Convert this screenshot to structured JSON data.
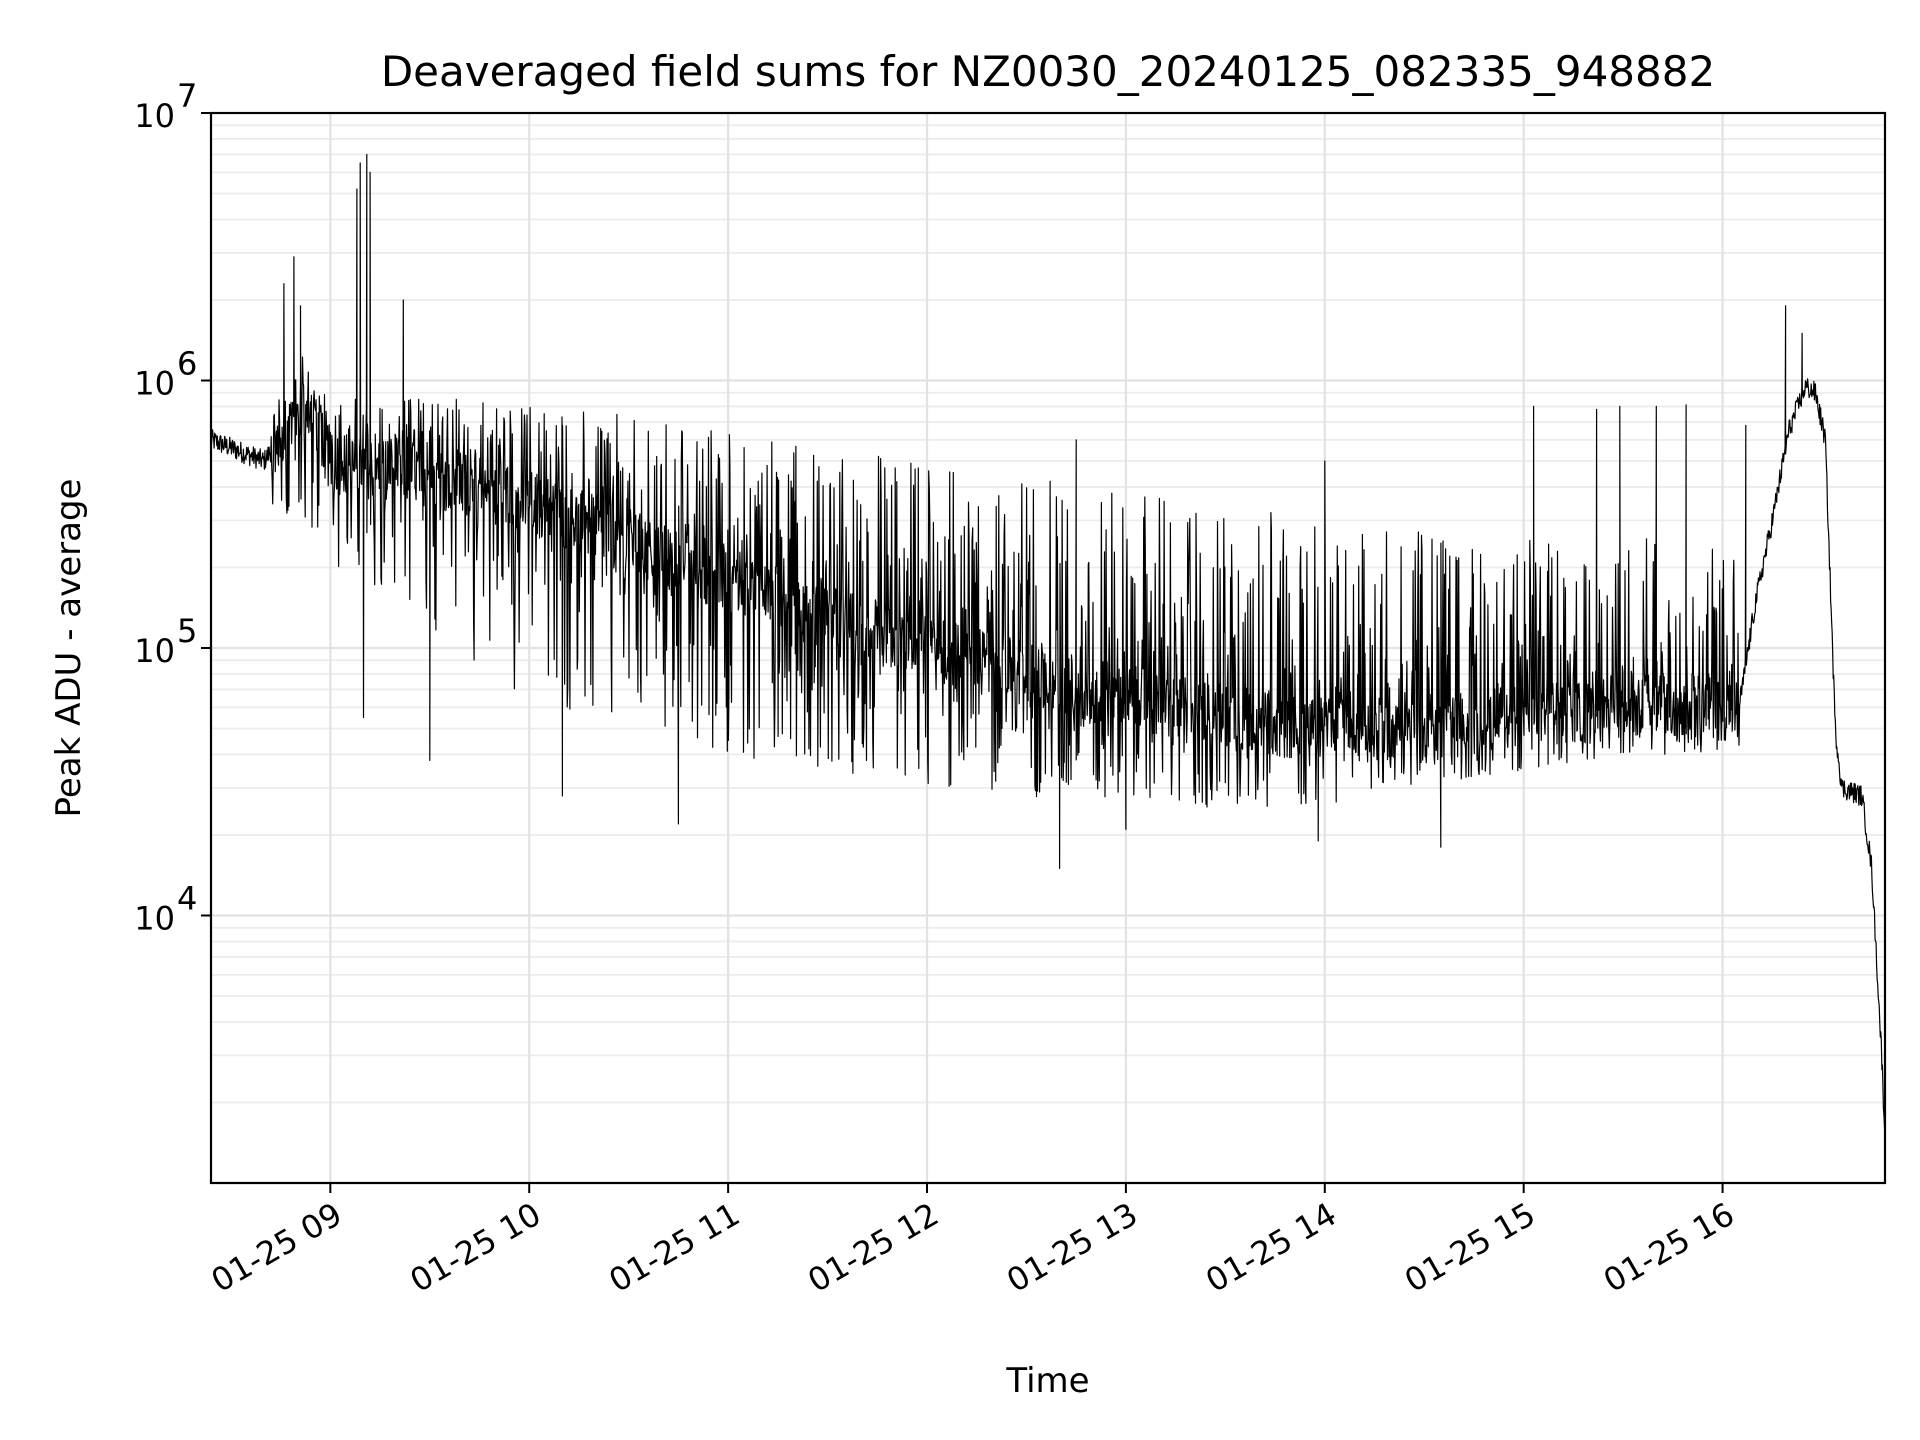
{
  "colors": {
    "line": "#000000",
    "grid": "#e2e2e2",
    "background": "#ffffff"
  },
  "chart_data": {
    "type": "line",
    "title": "Deaveraged field sums for NZ0030_20240125_082335_948882",
    "xlabel": "Time",
    "ylabel": "Peak ADU - average",
    "yscale": "log",
    "grid": true,
    "xlim": [
      "2024-01-25 08:24",
      "2024-01-25 16:49"
    ],
    "ylim": [
      1000,
      10000000
    ],
    "x_ticks": [
      "01-25 09",
      "01-25 10",
      "01-25 11",
      "01-25 12",
      "01-25 13",
      "01-25 14",
      "01-25 15",
      "01-25 16"
    ],
    "y_ticks": [
      {
        "base": "10",
        "exp": "4",
        "value": 10000
      },
      {
        "base": "10",
        "exp": "5",
        "value": 100000
      },
      {
        "base": "10",
        "exp": "6",
        "value": 1000000
      },
      {
        "base": "10",
        "exp": "7",
        "value": 10000000
      }
    ],
    "series": [
      {
        "color": "#000000",
        "typical_points": [
          [
            "08:24",
            600000
          ],
          [
            "08:40",
            500000
          ],
          [
            "08:48",
            700000
          ],
          [
            "08:52",
            1000000
          ],
          [
            "09:00",
            500000
          ],
          [
            "09:30",
            450000
          ],
          [
            "10:00",
            350000
          ],
          [
            "10:30",
            250000
          ],
          [
            "11:00",
            180000
          ],
          [
            "11:30",
            130000
          ],
          [
            "12:00",
            100000
          ],
          [
            "12:30",
            80000
          ],
          [
            "13:00",
            65000
          ],
          [
            "13:30",
            55000
          ],
          [
            "14:00",
            50000
          ],
          [
            "14:30",
            50000
          ],
          [
            "15:00",
            55000
          ],
          [
            "15:30",
            62000
          ],
          [
            "16:00",
            60000
          ],
          [
            "16:05",
            60000
          ],
          [
            "16:10",
            150000
          ],
          [
            "16:15",
            300000
          ],
          [
            "16:20",
            650000
          ],
          [
            "16:25",
            950000
          ],
          [
            "16:28",
            900000
          ],
          [
            "16:31",
            600000
          ],
          [
            "16:34",
            50000
          ],
          [
            "16:36",
            30000
          ],
          [
            "16:42",
            28000
          ],
          [
            "16:45",
            15000
          ],
          [
            "16:48",
            3000
          ],
          [
            "16:49",
            1500
          ]
        ],
        "upper_envelope": [
          [
            "08:24",
            800000
          ],
          [
            "09:00",
            900000
          ],
          [
            "09:30",
            880000
          ],
          [
            "10:00",
            820000
          ],
          [
            "10:30",
            750000
          ],
          [
            "11:00",
            650000
          ],
          [
            "11:30",
            550000
          ],
          [
            "12:00",
            500000
          ],
          [
            "12:30",
            450000
          ],
          [
            "13:00",
            400000
          ],
          [
            "13:30",
            350000
          ],
          [
            "14:00",
            300000
          ],
          [
            "14:30",
            280000
          ],
          [
            "15:00",
            270000
          ],
          [
            "15:30",
            260000
          ],
          [
            "16:00",
            250000
          ]
        ],
        "lower_envelope": [
          [
            "08:24",
            400000
          ],
          [
            "09:00",
            200000
          ],
          [
            "09:30",
            120000
          ],
          [
            "10:00",
            60000
          ],
          [
            "10:30",
            50000
          ],
          [
            "11:00",
            40000
          ],
          [
            "11:30",
            35000
          ],
          [
            "12:00",
            30000
          ],
          [
            "12:30",
            28000
          ],
          [
            "13:00",
            26000
          ],
          [
            "13:30",
            25000
          ],
          [
            "14:00",
            26000
          ],
          [
            "14:30",
            30000
          ],
          [
            "15:00",
            35000
          ],
          [
            "15:30",
            40000
          ],
          [
            "16:00",
            40000
          ]
        ],
        "spikes": [
          [
            "08:46",
            2300000
          ],
          [
            "08:49",
            2900000
          ],
          [
            "08:51",
            1900000
          ],
          [
            "09:08",
            5200000
          ],
          [
            "09:09",
            6500000
          ],
          [
            "09:11",
            7000000
          ],
          [
            "09:12",
            6000000
          ],
          [
            "09:22",
            2000000
          ],
          [
            "12:45",
            600000
          ],
          [
            "14:00",
            500000
          ],
          [
            "15:03",
            800000
          ],
          [
            "15:22",
            780000
          ],
          [
            "15:29",
            800000
          ],
          [
            "15:40",
            800000
          ],
          [
            "15:49",
            810000
          ],
          [
            "16:07",
            680000
          ],
          [
            "16:19",
            1900000
          ],
          [
            "16:24",
            1500000
          ]
        ],
        "dips": [
          [
            "09:10",
            55000
          ],
          [
            "09:30",
            38000
          ],
          [
            "10:10",
            28000
          ],
          [
            "10:45",
            22000
          ],
          [
            "12:40",
            15000
          ],
          [
            "13:00",
            21000
          ],
          [
            "13:58",
            19000
          ],
          [
            "14:35",
            18000
          ]
        ]
      }
    ]
  }
}
